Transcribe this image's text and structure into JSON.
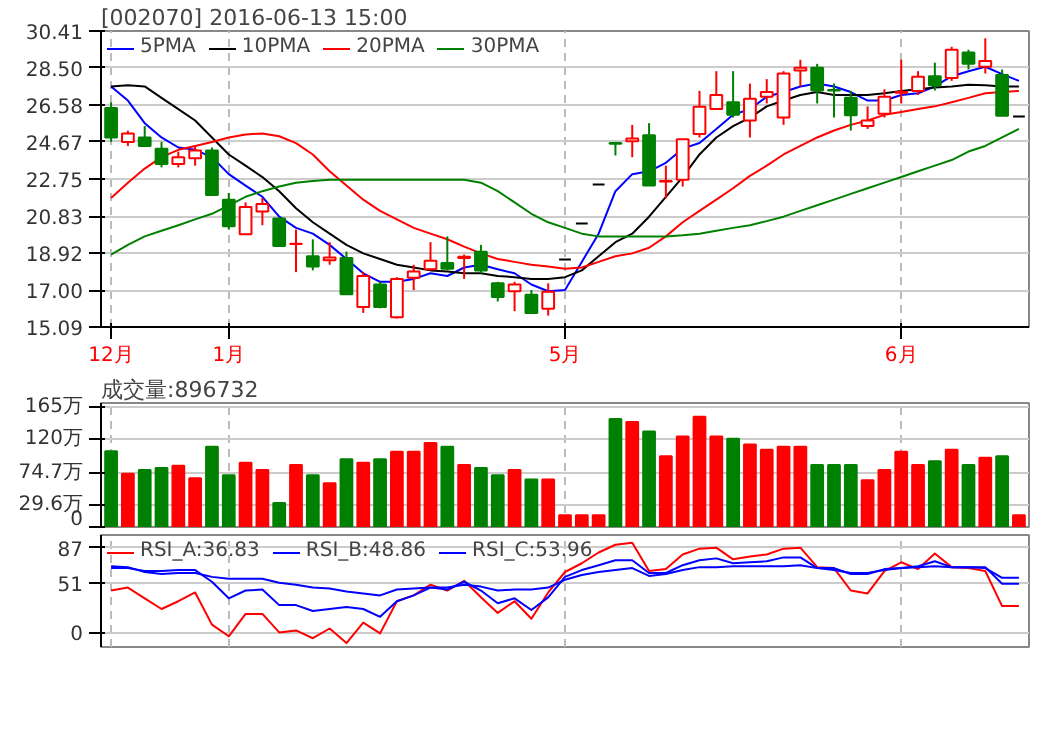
{
  "chart_data": [
    {
      "type": "candlestick",
      "title": "[002070] 2016-06-13 15:00",
      "categories": [
        "12月",
        null,
        null,
        null,
        null,
        null,
        null,
        "1月",
        null,
        null,
        null,
        null,
        null,
        null,
        null,
        null,
        null,
        null,
        null,
        null,
        null,
        null,
        null,
        null,
        null,
        null,
        null,
        "5月",
        null,
        null,
        null,
        null,
        null,
        null,
        null,
        null,
        null,
        null,
        null,
        null,
        null,
        null,
        null,
        null,
        null,
        null,
        null,
        "6月",
        null,
        null,
        null,
        null,
        null,
        null,
        null
      ],
      "ohlc": [
        [
          26.43,
          26.72,
          24.67,
          24.9
        ],
        [
          24.67,
          25.25,
          24.46,
          25.11
        ],
        [
          24.9,
          25.49,
          24.46,
          24.46
        ],
        [
          24.32,
          24.67,
          23.35,
          23.53
        ],
        [
          23.53,
          24.17,
          23.35,
          23.88
        ],
        [
          23.82,
          24.46,
          23.44,
          24.23
        ],
        [
          24.23,
          24.38,
          21.92,
          21.92
        ],
        [
          21.68,
          22.03,
          20.13,
          20.3
        ],
        [
          19.89,
          21.54,
          19.89,
          21.3
        ],
        [
          21.07,
          21.77,
          20.36,
          21.45
        ],
        [
          20.71,
          20.71,
          19.28,
          19.28
        ],
        [
          19.38,
          20.13,
          17.93,
          19.4
        ],
        [
          18.75,
          19.63,
          18.02,
          18.22
        ],
        [
          18.55,
          19.48,
          18.31,
          18.69
        ],
        [
          18.66,
          18.99,
          16.79,
          16.79
        ],
        [
          16.12,
          17.93,
          15.82,
          17.73
        ],
        [
          17.29,
          17.43,
          16.06,
          16.12
        ],
        [
          15.59,
          17.67,
          15.53,
          17.58
        ],
        [
          17.64,
          18.31,
          17.0,
          17.96
        ],
        [
          18.08,
          19.48,
          18.02,
          18.52
        ],
        [
          18.4,
          19.78,
          18.02,
          18.11
        ],
        [
          18.66,
          18.84,
          17.58,
          18.72
        ],
        [
          18.99,
          19.34,
          17.87,
          18.02
        ],
        [
          17.35,
          17.43,
          16.41,
          16.64
        ],
        [
          16.94,
          17.43,
          15.91,
          17.29
        ],
        [
          16.76,
          17.0,
          15.82,
          15.82
        ],
        [
          16.03,
          17.35,
          15.68,
          16.91
        ],
        [
          18.58,
          18.58,
          18.58,
          18.58
        ],
        [
          20.45,
          20.45,
          20.45,
          20.45
        ],
        [
          22.47,
          22.47,
          22.47,
          22.47
        ],
        [
          24.61,
          24.67,
          23.97,
          24.58
        ],
        [
          24.7,
          25.55,
          23.88,
          24.84
        ],
        [
          25.02,
          25.64,
          22.41,
          22.41
        ],
        [
          22.62,
          23.44,
          21.74,
          22.65
        ],
        [
          22.71,
          24.81,
          22.36,
          24.81
        ],
        [
          25.08,
          27.31,
          24.9,
          26.49
        ],
        [
          26.37,
          28.33,
          26.37,
          27.1
        ],
        [
          26.72,
          28.33,
          25.93,
          26.07
        ],
        [
          25.78,
          27.69,
          24.9,
          26.9
        ],
        [
          27.01,
          27.92,
          26.66,
          27.25
        ],
        [
          25.93,
          28.33,
          25.55,
          28.21
        ],
        [
          28.37,
          28.92,
          27.54,
          28.51
        ],
        [
          28.51,
          28.71,
          26.66,
          27.33
        ],
        [
          27.36,
          27.69,
          25.93,
          27.33
        ],
        [
          26.95,
          27.31,
          25.26,
          26.05
        ],
        [
          25.49,
          26.51,
          25.34,
          25.78
        ],
        [
          26.13,
          27.39,
          25.93,
          27.01
        ],
        [
          27.22,
          28.92,
          26.66,
          27.25
        ],
        [
          27.31,
          28.33,
          27.1,
          28.04
        ],
        [
          28.07,
          28.77,
          27.33,
          27.6
        ],
        [
          27.98,
          29.59,
          27.83,
          29.44
        ],
        [
          29.3,
          29.44,
          28.42,
          28.71
        ],
        [
          28.56,
          30.03,
          28.21,
          28.86
        ],
        [
          28.13,
          28.42,
          26.02,
          26.02
        ],
        [
          25.99,
          25.99,
          25.99,
          25.99
        ]
      ],
      "series": [
        {
          "name": "5PMA",
          "type": "line",
          "color": "#0000ff",
          "values": [
            27.54,
            26.81,
            25.64,
            24.9,
            24.38,
            24.26,
            23.88,
            23.0,
            22.41,
            21.83,
            20.8,
            20.22,
            19.92,
            19.34,
            18.61,
            17.87,
            17.43,
            17.43,
            17.58,
            17.87,
            17.73,
            18.17,
            18.31,
            18.08,
            17.87,
            17.29,
            16.94,
            17.0,
            18.46,
            19.92,
            22.12,
            23.0,
            23.15,
            23.59,
            24.32,
            24.61,
            25.34,
            26.07,
            26.37,
            27.01,
            27.25,
            27.54,
            27.69,
            27.54,
            27.25,
            26.81,
            26.81,
            27.1,
            27.19,
            27.54,
            28.07,
            28.33,
            28.56,
            28.18,
            27.83
          ]
        },
        {
          "name": "10PMA",
          "type": "line",
          "color": "#000000",
          "values": [
            27.54,
            27.6,
            27.54,
            26.95,
            26.37,
            25.78,
            24.9,
            24.02,
            23.44,
            22.85,
            22.12,
            21.24,
            20.51,
            19.92,
            19.34,
            18.9,
            18.61,
            18.31,
            18.17,
            18.02,
            17.96,
            17.87,
            17.87,
            17.73,
            17.67,
            17.58,
            17.58,
            17.67,
            18.02,
            18.75,
            19.48,
            19.92,
            20.8,
            21.83,
            22.85,
            24.02,
            24.9,
            25.49,
            25.93,
            26.51,
            26.81,
            27.1,
            27.25,
            27.1,
            27.1,
            27.1,
            27.19,
            27.31,
            27.39,
            27.48,
            27.54,
            27.63,
            27.6,
            27.54,
            27.54
          ]
        },
        {
          "name": "20PMA",
          "type": "line",
          "color": "#ff0000",
          "values": [
            21.77,
            22.56,
            23.29,
            23.88,
            24.26,
            24.46,
            24.67,
            24.9,
            25.05,
            25.11,
            24.96,
            24.61,
            24.02,
            23.15,
            22.41,
            21.68,
            21.1,
            20.66,
            20.22,
            19.92,
            19.63,
            19.25,
            18.9,
            18.61,
            18.46,
            18.31,
            18.22,
            18.11,
            18.17,
            18.46,
            18.75,
            18.9,
            19.19,
            19.78,
            20.51,
            21.1,
            21.68,
            22.27,
            22.91,
            23.44,
            24.02,
            24.46,
            24.9,
            25.26,
            25.55,
            25.78,
            26.07,
            26.22,
            26.37,
            26.51,
            26.72,
            26.95,
            27.19,
            27.25,
            27.31
          ]
        },
        {
          "name": "30PMA",
          "type": "line",
          "color": "#008000",
          "values": [
            18.84,
            19.34,
            19.78,
            20.07,
            20.36,
            20.66,
            20.95,
            21.39,
            21.83,
            22.12,
            22.36,
            22.56,
            22.65,
            22.71,
            22.71,
            22.71,
            22.71,
            22.71,
            22.71,
            22.71,
            22.71,
            22.71,
            22.56,
            22.12,
            21.54,
            20.95,
            20.51,
            20.22,
            19.92,
            19.78,
            19.78,
            19.78,
            19.78,
            19.78,
            19.84,
            19.92,
            20.07,
            20.22,
            20.36,
            20.57,
            20.8,
            21.1,
            21.39,
            21.68,
            21.98,
            22.27,
            22.56,
            22.85,
            23.15,
            23.44,
            23.73,
            24.17,
            24.46,
            24.9,
            25.34
          ]
        }
      ],
      "ylim": [
        15.09,
        30.41
      ],
      "yticks": [
        15.09,
        {
          "value": 17,
          "label": "17.00"
        },
        18.92,
        20.83,
        22.75,
        24.67,
        26.58,
        {
          "value": 28.5,
          "label": "28.50"
        },
        30.41
      ],
      "grid": true,
      "legend": "top left"
    },
    {
      "type": "bar",
      "title": "成交量:896732",
      "categories": [
        null,
        null,
        null,
        null,
        null,
        null,
        null,
        null,
        null,
        null,
        null,
        null,
        null,
        null,
        null,
        null,
        null,
        null,
        null,
        null,
        null,
        null,
        null,
        null,
        null,
        null,
        null,
        null,
        null,
        null,
        null,
        null,
        null,
        null,
        null,
        null,
        null,
        null,
        null,
        null,
        null,
        null,
        null,
        null,
        null,
        null,
        null,
        null,
        null,
        null,
        null,
        null,
        null,
        null,
        null
      ],
      "values": [
        104,
        73,
        78,
        81,
        84,
        67,
        110,
        71,
        88,
        78,
        33,
        85,
        71,
        60,
        93,
        88,
        93,
        103,
        103,
        115,
        110,
        85,
        81,
        71,
        78,
        65,
        65,
        16,
        16,
        16,
        148,
        144,
        131,
        97,
        124,
        151,
        124,
        121,
        113,
        106,
        110,
        110,
        85,
        85,
        85,
        64,
        78,
        103,
        85,
        90,
        106,
        85,
        95,
        97,
        16
      ],
      "colors": [
        "#008000",
        "#ff0000",
        "#008000",
        "#008000",
        "#ff0000",
        "#ff0000",
        "#008000",
        "#008000",
        "#ff0000",
        "#ff0000",
        "#008000",
        "#ff0000",
        "#008000",
        "#ff0000",
        "#008000",
        "#ff0000",
        "#008000",
        "#ff0000",
        "#ff0000",
        "#ff0000",
        "#008000",
        "#ff0000",
        "#008000",
        "#008000",
        "#ff0000",
        "#008000",
        "#ff0000",
        "#ff0000",
        "#ff0000",
        "#ff0000",
        "#008000",
        "#ff0000",
        "#008000",
        "#ff0000",
        "#ff0000",
        "#ff0000",
        "#ff0000",
        "#008000",
        "#ff0000",
        "#ff0000",
        "#ff0000",
        "#ff0000",
        "#008000",
        "#008000",
        "#008000",
        "#ff0000",
        "#ff0000",
        "#ff0000",
        "#ff0000",
        "#008000",
        "#ff0000",
        "#008000",
        "#ff0000",
        "#008000",
        "#ff0000"
      ],
      "ylim": [
        0,
        170
      ],
      "yticks": [
        0,
        {
          "value": 29.6,
          "label": "29.6万"
        },
        {
          "value": 74.7,
          "label": "74.7万"
        },
        {
          "value": 120,
          "label": "120万"
        },
        {
          "value": 165,
          "label": "165万"
        }
      ],
      "grid": true,
      "tick_labels": "y"
    },
    {
      "type": "line",
      "categories": [
        null,
        null,
        null,
        null,
        null,
        null,
        null,
        null,
        null,
        null,
        null,
        null,
        null,
        null,
        null,
        null,
        null,
        null,
        null,
        null,
        null,
        null,
        null,
        null,
        null,
        null,
        null,
        null,
        null,
        null,
        null,
        null,
        null,
        null,
        null,
        null,
        null,
        null,
        null,
        null,
        null,
        null,
        null,
        null,
        null,
        null,
        null,
        null,
        null,
        null,
        null,
        null,
        null,
        null,
        null
      ],
      "series": [
        {
          "name": "RSI_A:36.83",
          "color": "#ff0000",
          "values": [
            43,
            46,
            35,
            24,
            32,
            41,
            8,
            -4,
            19,
            19,
            0,
            2,
            -6,
            4,
            -11,
            10,
            -1,
            32,
            38,
            49,
            43,
            53,
            36,
            20,
            32,
            14,
            41,
            62,
            71,
            82,
            90,
            92,
            63,
            65,
            80,
            86,
            87,
            75,
            78,
            80,
            86,
            87,
            67,
            66,
            43,
            40,
            63,
            72,
            65,
            81,
            67,
            66,
            63,
            27,
            27
          ]
        },
        {
          "name": "RSI_B:48.86",
          "color": "#0000ff",
          "values": [
            66,
            66,
            63,
            63,
            64,
            64,
            52,
            35,
            43,
            44,
            28,
            28,
            22,
            24,
            26,
            24,
            16,
            32,
            38,
            46,
            44,
            52,
            43,
            30,
            35,
            23,
            36,
            57,
            64,
            69,
            74,
            74,
            61,
            61,
            69,
            74,
            76,
            71,
            72,
            73,
            77,
            77,
            66,
            66,
            60,
            60,
            65,
            66,
            68,
            73,
            67,
            67,
            67,
            50,
            50
          ]
        },
        {
          "name": "RSI_C:53.96",
          "color": "#0000ff",
          "values": [
            68,
            67,
            62,
            60,
            61,
            61,
            57,
            55,
            55,
            55,
            51,
            49,
            46,
            45,
            42,
            40,
            38,
            44,
            45,
            46,
            46,
            49,
            47,
            43,
            44,
            44,
            46,
            54,
            59,
            62,
            64,
            66,
            58,
            60,
            64,
            67,
            67,
            68,
            68,
            68,
            68,
            69,
            66,
            64,
            61,
            61,
            64,
            66,
            67,
            68,
            67,
            67,
            66,
            56,
            56
          ]
        }
      ],
      "ylim": [
        -15,
        100
      ],
      "yticks": [
        0,
        51,
        87
      ],
      "grid": true,
      "legend": "top left",
      "tick_labels": "y"
    }
  ]
}
